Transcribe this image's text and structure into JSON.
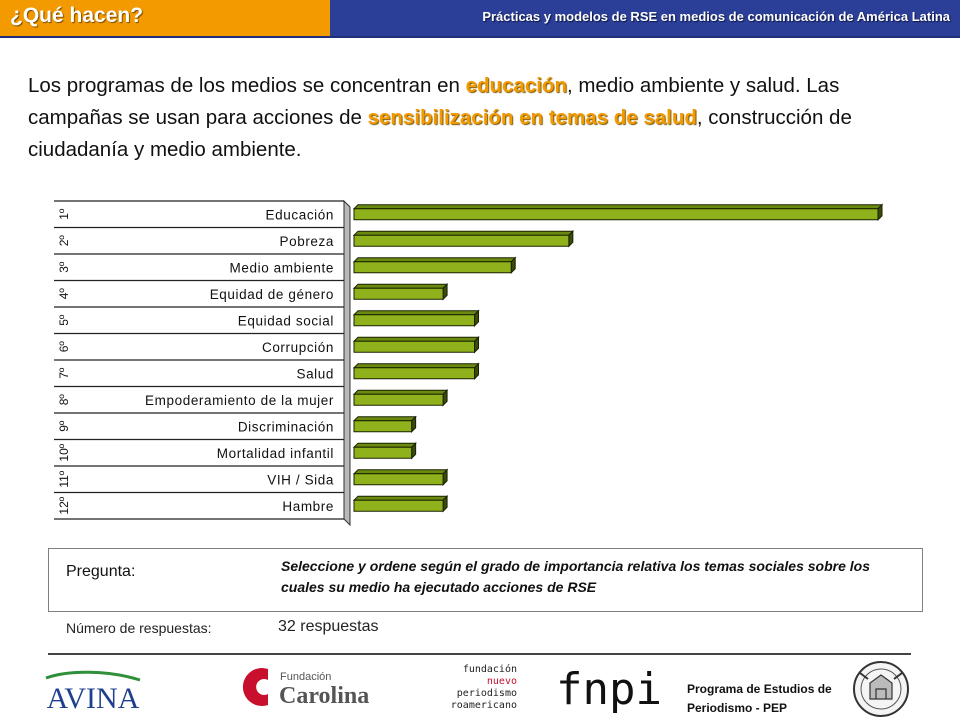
{
  "header": {
    "tab_title": "¿Qué hacen?",
    "subtitle": "Prácticas y modelos de RSE en medios de comunicación de América Latina"
  },
  "intro": {
    "t1": "Los programas de los medios se concentran en ",
    "h1": "educación",
    "t2": ", medio ambiente y salud. Las campañas se usan para acciones de ",
    "h2": "sensibilización en temas de salud",
    "t3": ", construcción de ciudadanía y medio ambiente."
  },
  "question": {
    "label": "Pregunta:",
    "text": "Seleccione y ordene según el grado de importancia relativa los temas sociales sobre los cuales su medio ha ejecutado acciones de RSE",
    "responses_label": "Número de respuestas:",
    "responses_value": "32 respuestas"
  },
  "footer": {
    "avina": "AVINA",
    "carolina_small": "Fundación",
    "carolina_big": "Carolina",
    "fnpi_line1": "fundación",
    "fnpi_line2": "nuevo",
    "fnpi_line3": "periodismo",
    "fnpi_line4": "iberoamericano",
    "fnpi_logo": "fnpi",
    "pep_line1": "Programa de Estudios de",
    "pep_line2": "Periodismo - PEP"
  },
  "colors": {
    "bar_fill": "#8fb21c",
    "bar_dark": "#3a4a08",
    "accent_orange": "#f29a00",
    "header_blue": "#2b3f99"
  },
  "chart_data": {
    "type": "bar",
    "orientation": "horizontal",
    "ranks": [
      "1º",
      "2º",
      "3º",
      "4º",
      "5º",
      "6º",
      "7º",
      "8º",
      "9º",
      "10º",
      "11º",
      "12º"
    ],
    "categories": [
      "Educación",
      "Pobreza",
      "Medio ambiente",
      "Equidad de género",
      "Equidad social",
      "Corrupción",
      "Salud",
      "Empoderamiento de la mujer",
      "Discriminación",
      "Mortalidad infantil",
      "VIH / Sida",
      "Hambre"
    ],
    "values": [
      100,
      41,
      30,
      17,
      23,
      23,
      23,
      17,
      11,
      11,
      17,
      17
    ],
    "xlim": [
      0,
      100
    ],
    "grid": false,
    "legend": "none"
  }
}
